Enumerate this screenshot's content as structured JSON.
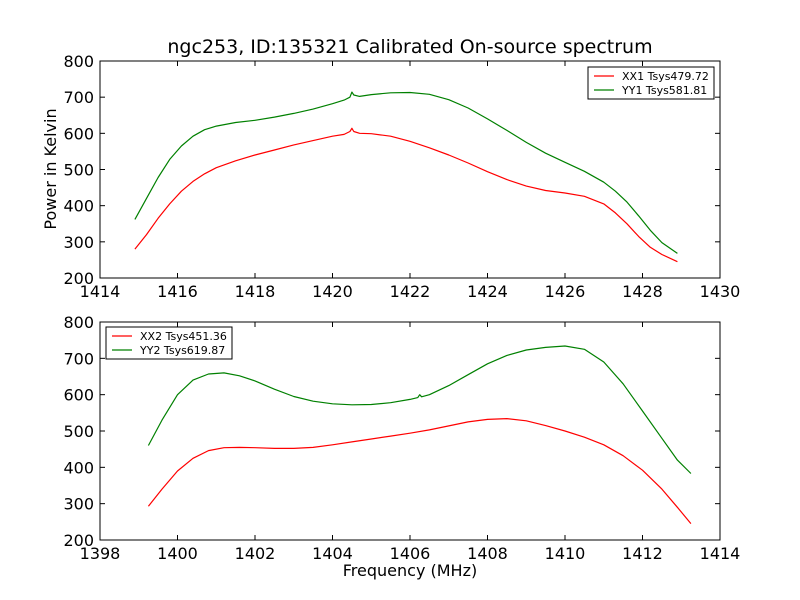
{
  "figure": {
    "title": "ngc253, ID:135321 Calibrated On-source spectrum",
    "ylabel": "Power in Kelvin",
    "xlabel": "Frequency (MHz)"
  },
  "chart_data": [
    {
      "type": "line",
      "title": "ngc253, ID:135321 Calibrated On-source spectrum",
      "xlabel": "",
      "ylabel": "Power in Kelvin",
      "xlim": [
        1414,
        1430
      ],
      "ylim": [
        200,
        800
      ],
      "xticks": [
        1414,
        1416,
        1418,
        1420,
        1422,
        1424,
        1426,
        1428,
        1430
      ],
      "yticks": [
        200,
        300,
        400,
        500,
        600,
        700,
        800
      ],
      "grid": false,
      "legend": "top-right",
      "series": [
        {
          "name": "XX1 Tsys479.72",
          "color": "#ff0000",
          "x": [
            1414.9,
            1415.2,
            1415.5,
            1415.8,
            1416.1,
            1416.4,
            1416.7,
            1417.0,
            1417.5,
            1418.0,
            1418.5,
            1419.0,
            1419.5,
            1420.0,
            1420.3,
            1420.45,
            1420.5,
            1420.55,
            1420.7,
            1421.0,
            1421.5,
            1422.0,
            1422.5,
            1423.0,
            1423.5,
            1424.0,
            1424.5,
            1425.0,
            1425.5,
            1426.0,
            1426.5,
            1427.0,
            1427.3,
            1427.6,
            1427.9,
            1428.2,
            1428.5,
            1428.9
          ],
          "values": [
            280,
            320,
            365,
            405,
            440,
            467,
            488,
            505,
            524,
            540,
            554,
            568,
            580,
            592,
            597,
            605,
            614,
            605,
            600,
            599,
            592,
            578,
            560,
            540,
            518,
            494,
            472,
            454,
            442,
            435,
            426,
            405,
            380,
            350,
            315,
            285,
            265,
            245
          ]
        },
        {
          "name": "YY1 Tsys581.81",
          "color": "#008000",
          "x": [
            1414.9,
            1415.2,
            1415.5,
            1415.8,
            1416.1,
            1416.4,
            1416.7,
            1417.0,
            1417.5,
            1418.0,
            1418.5,
            1419.0,
            1419.5,
            1420.0,
            1420.3,
            1420.45,
            1420.5,
            1420.55,
            1420.7,
            1421.0,
            1421.5,
            1422.0,
            1422.5,
            1423.0,
            1423.5,
            1424.0,
            1424.5,
            1425.0,
            1425.5,
            1426.0,
            1426.5,
            1427.0,
            1427.3,
            1427.6,
            1427.9,
            1428.2,
            1428.5,
            1428.9
          ],
          "values": [
            362,
            420,
            478,
            528,
            565,
            592,
            610,
            620,
            630,
            636,
            645,
            655,
            667,
            682,
            692,
            700,
            714,
            706,
            702,
            707,
            712,
            713,
            708,
            693,
            670,
            640,
            608,
            575,
            545,
            520,
            495,
            465,
            440,
            410,
            372,
            332,
            298,
            268
          ]
        }
      ]
    },
    {
      "type": "line",
      "title": "",
      "xlabel": "Frequency (MHz)",
      "ylabel": "",
      "xlim": [
        1398,
        1414
      ],
      "ylim": [
        200,
        800
      ],
      "xticks": [
        1398,
        1400,
        1402,
        1404,
        1406,
        1408,
        1410,
        1412,
        1414
      ],
      "yticks": [
        200,
        300,
        400,
        500,
        600,
        700,
        800
      ],
      "grid": false,
      "legend": "top-left",
      "series": [
        {
          "name": "XX2 Tsys451.36",
          "color": "#ff0000",
          "x": [
            1399.25,
            1399.6,
            1400.0,
            1400.4,
            1400.8,
            1401.2,
            1401.6,
            1402.0,
            1402.5,
            1403.0,
            1403.5,
            1404.0,
            1404.5,
            1405.0,
            1405.5,
            1406.0,
            1406.5,
            1407.0,
            1407.5,
            1408.0,
            1408.5,
            1409.0,
            1409.5,
            1410.0,
            1410.5,
            1411.0,
            1411.5,
            1412.0,
            1412.5,
            1412.9,
            1413.25
          ],
          "values": [
            293,
            340,
            390,
            425,
            446,
            454,
            455,
            454,
            452,
            452,
            455,
            462,
            470,
            478,
            486,
            494,
            503,
            514,
            525,
            532,
            534,
            528,
            515,
            500,
            483,
            462,
            432,
            392,
            340,
            290,
            245
          ]
        },
        {
          "name": "YY2 Tsys619.87",
          "color": "#008000",
          "x": [
            1399.25,
            1399.6,
            1400.0,
            1400.4,
            1400.8,
            1401.2,
            1401.6,
            1402.0,
            1402.5,
            1403.0,
            1403.5,
            1404.0,
            1404.5,
            1405.0,
            1405.5,
            1406.0,
            1406.2,
            1406.25,
            1406.3,
            1406.5,
            1407.0,
            1407.5,
            1408.0,
            1408.5,
            1409.0,
            1409.5,
            1410.0,
            1410.5,
            1411.0,
            1411.5,
            1412.0,
            1412.5,
            1412.9,
            1413.25
          ],
          "values": [
            460,
            530,
            600,
            640,
            657,
            660,
            652,
            638,
            615,
            595,
            582,
            575,
            572,
            573,
            578,
            587,
            592,
            600,
            594,
            600,
            625,
            655,
            685,
            708,
            723,
            730,
            734,
            725,
            690,
            630,
            555,
            480,
            420,
            383
          ]
        }
      ]
    }
  ]
}
